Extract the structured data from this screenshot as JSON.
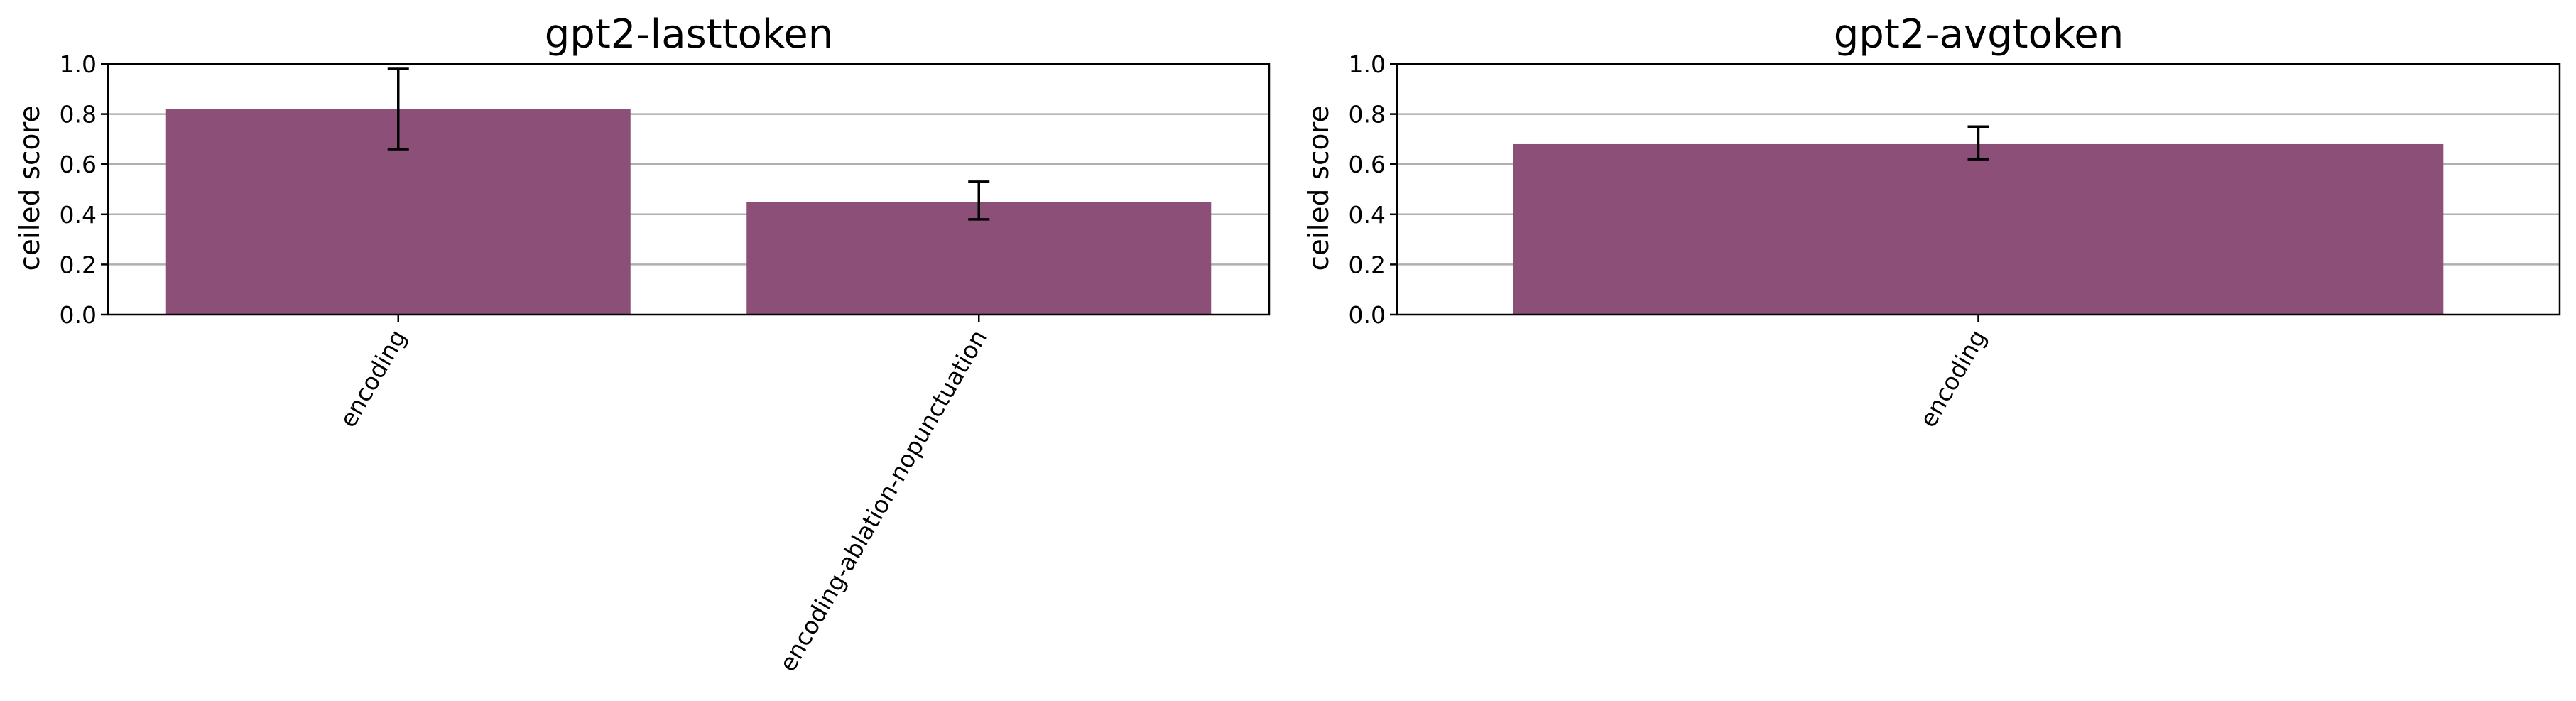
{
  "colors": {
    "bar": "#8b4f78",
    "grid": "#b0b0b0",
    "axis": "#000000",
    "error_bar": "#000000",
    "background": "#ffffff"
  },
  "chart_data": [
    {
      "type": "bar",
      "title": "gpt2-lasttoken",
      "xlabel": "",
      "ylabel": "ceiled score",
      "ylim": [
        0,
        1.0
      ],
      "yticks": [
        "0.0",
        "0.2",
        "0.4",
        "0.6",
        "0.8",
        "1.0"
      ],
      "grid": true,
      "categories": [
        "encoding",
        "encoding-ablation-nopunctuation"
      ],
      "values": [
        0.82,
        0.45
      ],
      "error_low": [
        0.66,
        0.38
      ],
      "error_high": [
        0.98,
        0.53
      ]
    },
    {
      "type": "bar",
      "title": "gpt2-avgtoken",
      "xlabel": "",
      "ylabel": "ceiled score",
      "ylim": [
        0,
        1.0
      ],
      "yticks": [
        "0.0",
        "0.2",
        "0.4",
        "0.6",
        "0.8",
        "1.0"
      ],
      "grid": true,
      "categories": [
        "encoding"
      ],
      "values": [
        0.68
      ],
      "error_low": [
        0.62
      ],
      "error_high": [
        0.75
      ]
    }
  ]
}
